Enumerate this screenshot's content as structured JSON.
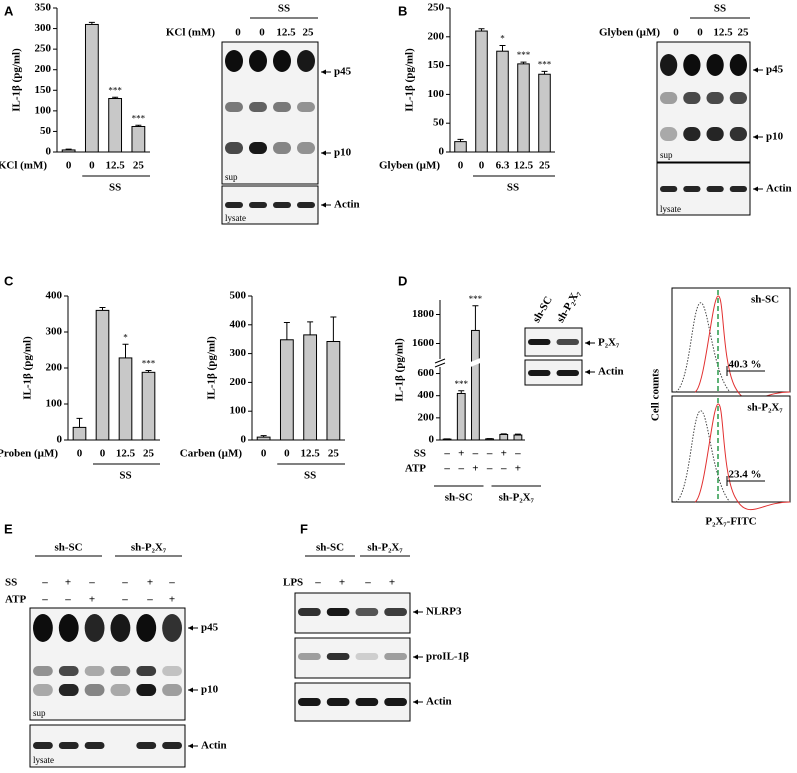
{
  "chart_data": [
    {
      "type": "bar",
      "panel": "A",
      "ylabel": "IL-1β (pg/ml)",
      "xlabel": "KCl (mM)",
      "categories": [
        "0",
        "0",
        "12.5",
        "25"
      ],
      "values": [
        5,
        310,
        130,
        62
      ],
      "errors": [
        2,
        5,
        3,
        3
      ],
      "annotations": [
        null,
        null,
        "***",
        "***"
      ],
      "group_label": "SS",
      "color": "#c8c8c8",
      "ylim": [
        0,
        350
      ],
      "yticks": [
        0,
        50,
        100,
        150,
        200,
        250,
        300,
        350
      ]
    },
    {
      "type": "bar",
      "panel": "B",
      "ylabel": "IL-1β (pg/ml)",
      "xlabel": "Glyben (µM)",
      "categories": [
        "0",
        "0",
        "6.3",
        "12.5",
        "25"
      ],
      "values": [
        18,
        210,
        175,
        153,
        135
      ],
      "errors": [
        4,
        4,
        10,
        3,
        5
      ],
      "annotations": [
        null,
        null,
        "*",
        "***",
        "***"
      ],
      "group_label": "SS",
      "color": "#c8c8c8",
      "ylim": [
        0,
        250
      ],
      "yticks": [
        0,
        50,
        100,
        150,
        200,
        250
      ]
    },
    {
      "type": "bar",
      "panel": "C",
      "ylabel": "IL-1β (pg/ml)",
      "xlabel": "Proben (µM)",
      "categories": [
        "0",
        "0",
        "12.5",
        "25"
      ],
      "values": [
        35,
        360,
        228,
        188
      ],
      "errors": [
        25,
        8,
        38,
        5
      ],
      "annotations": [
        null,
        null,
        "*",
        "***"
      ],
      "group_label": "SS",
      "color": "#c8c8c8",
      "ylim": [
        0,
        400
      ],
      "yticks": [
        0,
        100,
        200,
        300,
        400
      ]
    },
    {
      "type": "bar",
      "ylabel": "IL-1β (pg/ml)",
      "xlabel": "Carben (µM)",
      "categories": [
        "0",
        "0",
        "12.5",
        "25"
      ],
      "values": [
        10,
        348,
        365,
        342
      ],
      "errors": [
        5,
        60,
        45,
        85
      ],
      "group_label": "SS",
      "color": "#c8c8c8",
      "ylim": [
        0,
        500
      ],
      "yticks": [
        0,
        100,
        200,
        300,
        400,
        500
      ]
    },
    {
      "type": "bar",
      "panel": "D",
      "ylabel": "IL-1β (pg/ml)",
      "conditions": [
        {
          "name": "SS",
          "signs": [
            "–",
            "+",
            "–",
            "–",
            "+",
            "–"
          ]
        },
        {
          "name": "ATP",
          "signs": [
            "–",
            "–",
            "+",
            "–",
            "–",
            "+"
          ]
        }
      ],
      "groups": [
        "sh-SC",
        "sh-P₂X₇"
      ],
      "values": [
        8,
        420,
        1690,
        10,
        50,
        45
      ],
      "errors": [
        2,
        25,
        170,
        2,
        5,
        8
      ],
      "annotations": [
        null,
        "***",
        "***",
        null,
        null,
        null
      ],
      "color": "#c8c8c8",
      "ylim": [
        0,
        1900
      ],
      "ybreak": [
        650,
        1500
      ],
      "yticks": [
        0,
        200,
        400,
        600,
        1600,
        1800
      ]
    }
  ],
  "blot_A": {
    "treatment": "KCl (mM)",
    "lanes": [
      "0",
      "0",
      "12.5",
      "25"
    ],
    "group": "SS",
    "bands": [
      "p45",
      "p10"
    ],
    "sup": "sup",
    "lysate": "lysate",
    "loading": "Actin"
  },
  "blot_B": {
    "treatment": "Glyben (µM)",
    "lanes": [
      "0",
      "0",
      "12.5",
      "25"
    ],
    "group": "SS",
    "bands": [
      "p45",
      "p10"
    ],
    "sup": "sup",
    "lysate": "lysate",
    "loading": "Actin"
  },
  "inset_D": {
    "lanes": [
      "sh-SC",
      "sh-P₂X₇"
    ],
    "bands": [
      "P₂X₇",
      "Actin"
    ]
  },
  "flow_D": {
    "ylabel": "Cell counts",
    "xlabel": "P₂X₇-FITC",
    "panels": [
      {
        "label": "sh-SC",
        "percent": "40.3 %"
      },
      {
        "label": "sh-P₂X₇",
        "percent": "23.4 %"
      }
    ]
  },
  "panel_E": {
    "letter": "E",
    "groups": [
      "sh-SC",
      "sh-P₂X₇"
    ],
    "conditions": [
      {
        "name": "SS",
        "signs": [
          "–",
          "+",
          "–",
          "–",
          "+",
          "–"
        ]
      },
      {
        "name": "ATP",
        "signs": [
          "–",
          "–",
          "+",
          "–",
          "–",
          "+"
        ]
      }
    ],
    "bands": [
      "p45",
      "p10"
    ],
    "sup": "sup",
    "lysate": "lysate",
    "loading": "Actin"
  },
  "panel_F": {
    "letter": "F",
    "groups": [
      "sh-SC",
      "sh-P₂X₇"
    ],
    "condition": {
      "name": "LPS",
      "signs": [
        "–",
        "+",
        "–",
        "+"
      ]
    },
    "bands": [
      "NLRP3",
      "proIL-1β",
      "Actin"
    ]
  }
}
